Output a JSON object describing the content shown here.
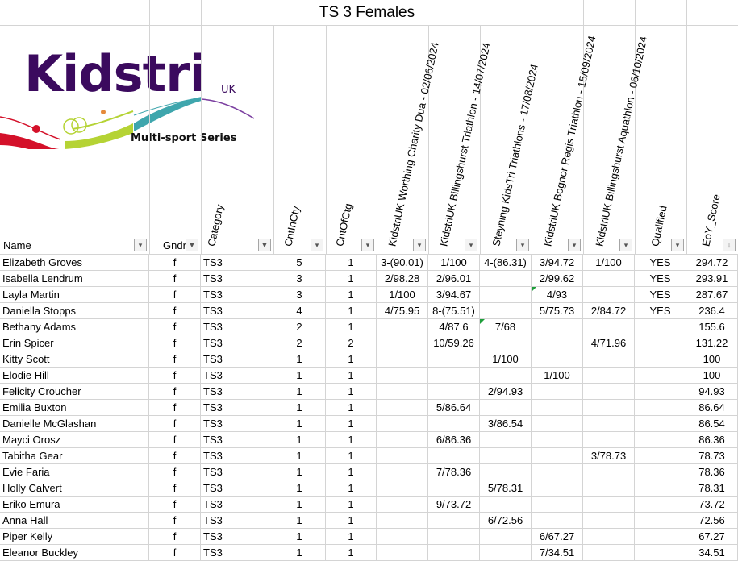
{
  "sheet": {
    "title": "TS 3  Females"
  },
  "logo": {
    "text": "Kidstri",
    "suffix": "UK",
    "tagline": "Multi-sport  Series",
    "colors": {
      "purple": "#3b0a5e",
      "red": "#d4112a",
      "lime": "#b5d334",
      "teal": "#3fa6ad"
    }
  },
  "headers": {
    "name": "Name",
    "gndr": "Gndr",
    "category": "Category",
    "cntincty": "CntInCty",
    "cntofctg": "CntOfCtg",
    "races": [
      "KidstriUK Worthing Charity Dua - 02/06/2024",
      "KidstriUK Billingshurst Triathlon - 14/07/2024",
      "Steyning KidsTri Triathlons - 17/08/2024",
      "KidstriUK Bognor Regis Triathlon - 15/09/2024",
      "KidstriUK Billingshurst Aquathlon - 06/10/2024"
    ],
    "qualified": "Qualified",
    "eoy": "EoY_Score"
  },
  "rows": [
    [
      "Elizabeth Groves",
      "f",
      "TS3",
      "5",
      "1",
      "3-(90.01)",
      "1/100",
      "4-(86.31)",
      "3/94.72",
      "1/100",
      "YES",
      "294.72"
    ],
    [
      "Isabella Lendrum",
      "f",
      "TS3",
      "3",
      "1",
      "2/98.28",
      "2/96.01",
      "",
      "2/99.62",
      "",
      "YES",
      "293.91"
    ],
    [
      "Layla Martin",
      "f",
      "TS3",
      "3",
      "1",
      "1/100",
      "3/94.67",
      "",
      "4/93",
      "",
      "YES",
      "287.67"
    ],
    [
      "Daniella Stopps",
      "f",
      "TS3",
      "4",
      "1",
      "4/75.95",
      "8-(75.51)",
      "",
      "5/75.73",
      "2/84.72",
      "YES",
      "236.4"
    ],
    [
      "Bethany Adams",
      "f",
      "TS3",
      "2",
      "1",
      "",
      "4/87.6",
      "7/68",
      "",
      "",
      "",
      "155.6"
    ],
    [
      "Erin Spicer",
      "f",
      "TS3",
      "2",
      "2",
      "",
      "10/59.26",
      "",
      "",
      "4/71.96",
      "",
      "131.22"
    ],
    [
      "Kitty Scott",
      "f",
      "TS3",
      "1",
      "1",
      "",
      "",
      "1/100",
      "",
      "",
      "",
      "100"
    ],
    [
      "Elodie Hill",
      "f",
      "TS3",
      "1",
      "1",
      "",
      "",
      "",
      "1/100",
      "",
      "",
      "100"
    ],
    [
      "Felicity Croucher",
      "f",
      "TS3",
      "1",
      "1",
      "",
      "",
      "2/94.93",
      "",
      "",
      "",
      "94.93"
    ],
    [
      "Emilia Buxton",
      "f",
      "TS3",
      "1",
      "1",
      "",
      "5/86.64",
      "",
      "",
      "",
      "",
      "86.64"
    ],
    [
      "Danielle McGlashan",
      "f",
      "TS3",
      "1",
      "1",
      "",
      "",
      "3/86.54",
      "",
      "",
      "",
      "86.54"
    ],
    [
      "Mayci Orosz",
      "f",
      "TS3",
      "1",
      "1",
      "",
      "6/86.36",
      "",
      "",
      "",
      "",
      "86.36"
    ],
    [
      "Tabitha Gear",
      "f",
      "TS3",
      "1",
      "1",
      "",
      "",
      "",
      "",
      "3/78.73",
      "",
      "78.73"
    ],
    [
      "Evie Faria",
      "f",
      "TS3",
      "1",
      "1",
      "",
      "7/78.36",
      "",
      "",
      "",
      "",
      "78.36"
    ],
    [
      "Holly Calvert",
      "f",
      "TS3",
      "1",
      "1",
      "",
      "",
      "5/78.31",
      "",
      "",
      "",
      "78.31"
    ],
    [
      "Eriko Emura",
      "f",
      "TS3",
      "1",
      "1",
      "",
      "9/73.72",
      "",
      "",
      "",
      "",
      "73.72"
    ],
    [
      "Anna Hall",
      "f",
      "TS3",
      "1",
      "1",
      "",
      "",
      "6/72.56",
      "",
      "",
      "",
      "72.56"
    ],
    [
      "Piper Kelly",
      "f",
      "TS3",
      "1",
      "1",
      "",
      "",
      "",
      "6/67.27",
      "",
      "",
      "67.27"
    ],
    [
      "Eleanor Buckley",
      "f",
      "TS3",
      "1",
      "1",
      "",
      "",
      "",
      "7/34.51",
      "",
      "",
      "34.51"
    ]
  ]
}
